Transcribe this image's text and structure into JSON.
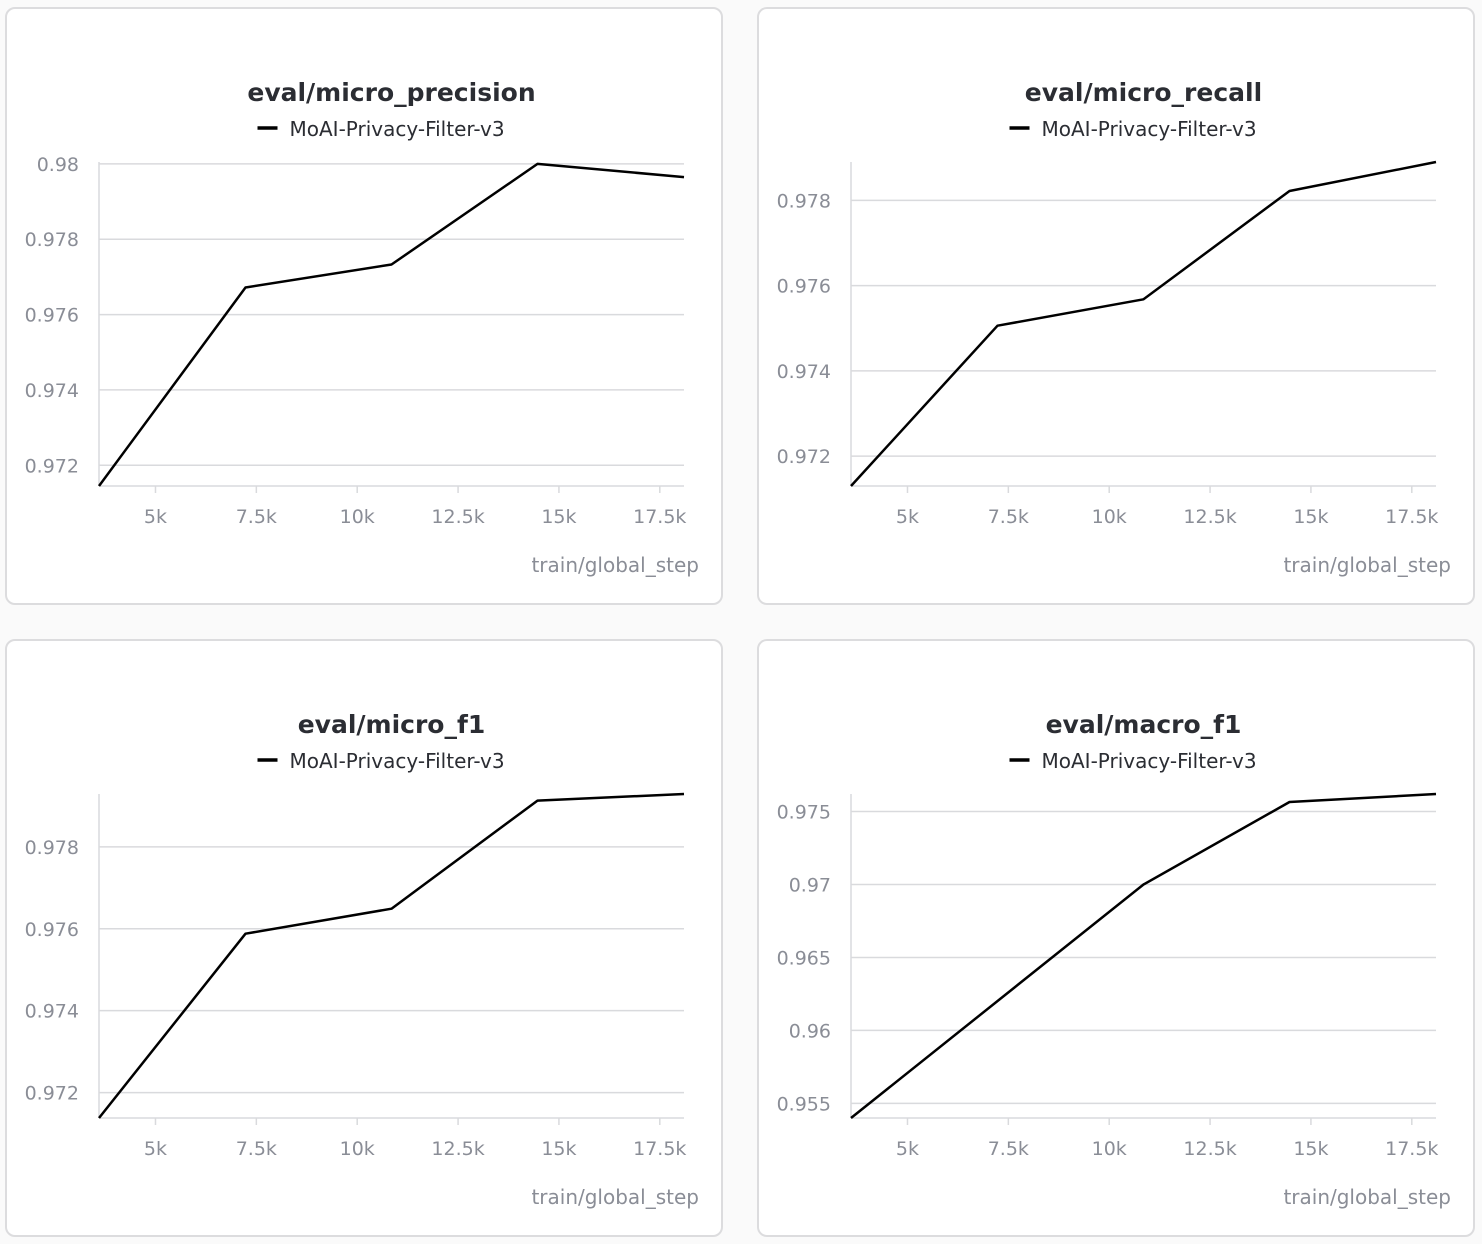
{
  "chart_data": [
    {
      "type": "line",
      "title": "eval/micro_precision",
      "xlabel": "train/global_step",
      "ylabel": "",
      "xlim": [
        3600,
        18100
      ],
      "ylim": [
        0.97145,
        0.98005
      ],
      "xticks": [
        5000,
        7500,
        10000,
        12500,
        15000,
        17500
      ],
      "xtick_labels": [
        "5k",
        "7.5k",
        "10k",
        "12.5k",
        "15k",
        "17.5k"
      ],
      "yticks": [
        0.972,
        0.974,
        0.976,
        0.978,
        0.98
      ],
      "ytick_labels": [
        "0.972",
        "0.974",
        "0.976",
        "0.978",
        "0.98"
      ],
      "grid": true,
      "series": [
        {
          "name": "MoAI-Privacy-Filter-v3",
          "color": "#000000",
          "x": [
            3600,
            7230,
            10850,
            14470,
            18100
          ],
          "y": [
            0.97145,
            0.97672,
            0.97733,
            0.98,
            0.97965
          ]
        }
      ]
    },
    {
      "type": "line",
      "title": "eval/micro_recall",
      "xlabel": "train/global_step",
      "ylabel": "",
      "xlim": [
        3600,
        18100
      ],
      "ylim": [
        0.9713,
        0.9789
      ],
      "xticks": [
        5000,
        7500,
        10000,
        12500,
        15000,
        17500
      ],
      "xtick_labels": [
        "5k",
        "7.5k",
        "10k",
        "12.5k",
        "15k",
        "17.5k"
      ],
      "yticks": [
        0.972,
        0.974,
        0.976,
        0.978
      ],
      "ytick_labels": [
        "0.972",
        "0.974",
        "0.976",
        "0.978"
      ],
      "grid": true,
      "series": [
        {
          "name": "MoAI-Privacy-Filter-v3",
          "color": "#000000",
          "x": [
            3600,
            7230,
            10850,
            14470,
            18100
          ],
          "y": [
            0.9713,
            0.97506,
            0.97568,
            0.97822,
            0.9789
          ]
        }
      ]
    },
    {
      "type": "line",
      "title": "eval/micro_f1",
      "xlabel": "train/global_step",
      "ylabel": "",
      "xlim": [
        3600,
        18100
      ],
      "ylim": [
        0.97138,
        0.97929
      ],
      "xticks": [
        5000,
        7500,
        10000,
        12500,
        15000,
        17500
      ],
      "xtick_labels": [
        "5k",
        "7.5k",
        "10k",
        "12.5k",
        "15k",
        "17.5k"
      ],
      "yticks": [
        0.972,
        0.974,
        0.976,
        0.978
      ],
      "ytick_labels": [
        "0.972",
        "0.974",
        "0.976",
        "0.978"
      ],
      "grid": true,
      "series": [
        {
          "name": "MoAI-Privacy-Filter-v3",
          "color": "#000000",
          "x": [
            3600,
            7230,
            10850,
            14470,
            18100
          ],
          "y": [
            0.97138,
            0.97588,
            0.97649,
            0.97913,
            0.97929
          ]
        }
      ]
    },
    {
      "type": "line",
      "title": "eval/macro_f1",
      "xlabel": "train/global_step",
      "ylabel": "",
      "xlim": [
        3600,
        18100
      ],
      "ylim": [
        0.954,
        0.9762
      ],
      "xticks": [
        5000,
        7500,
        10000,
        12500,
        15000,
        17500
      ],
      "xtick_labels": [
        "5k",
        "7.5k",
        "10k",
        "12.5k",
        "15k",
        "17.5k"
      ],
      "yticks": [
        0.955,
        0.96,
        0.965,
        0.97,
        0.975
      ],
      "ytick_labels": [
        "0.955",
        "0.96",
        "0.965",
        "0.97",
        "0.975"
      ],
      "grid": true,
      "series": [
        {
          "name": "MoAI-Privacy-Filter-v3",
          "color": "#000000",
          "x": [
            3600,
            10850,
            14470,
            18100
          ],
          "y": [
            0.954,
            0.97,
            0.97565,
            0.9762
          ]
        }
      ]
    }
  ]
}
